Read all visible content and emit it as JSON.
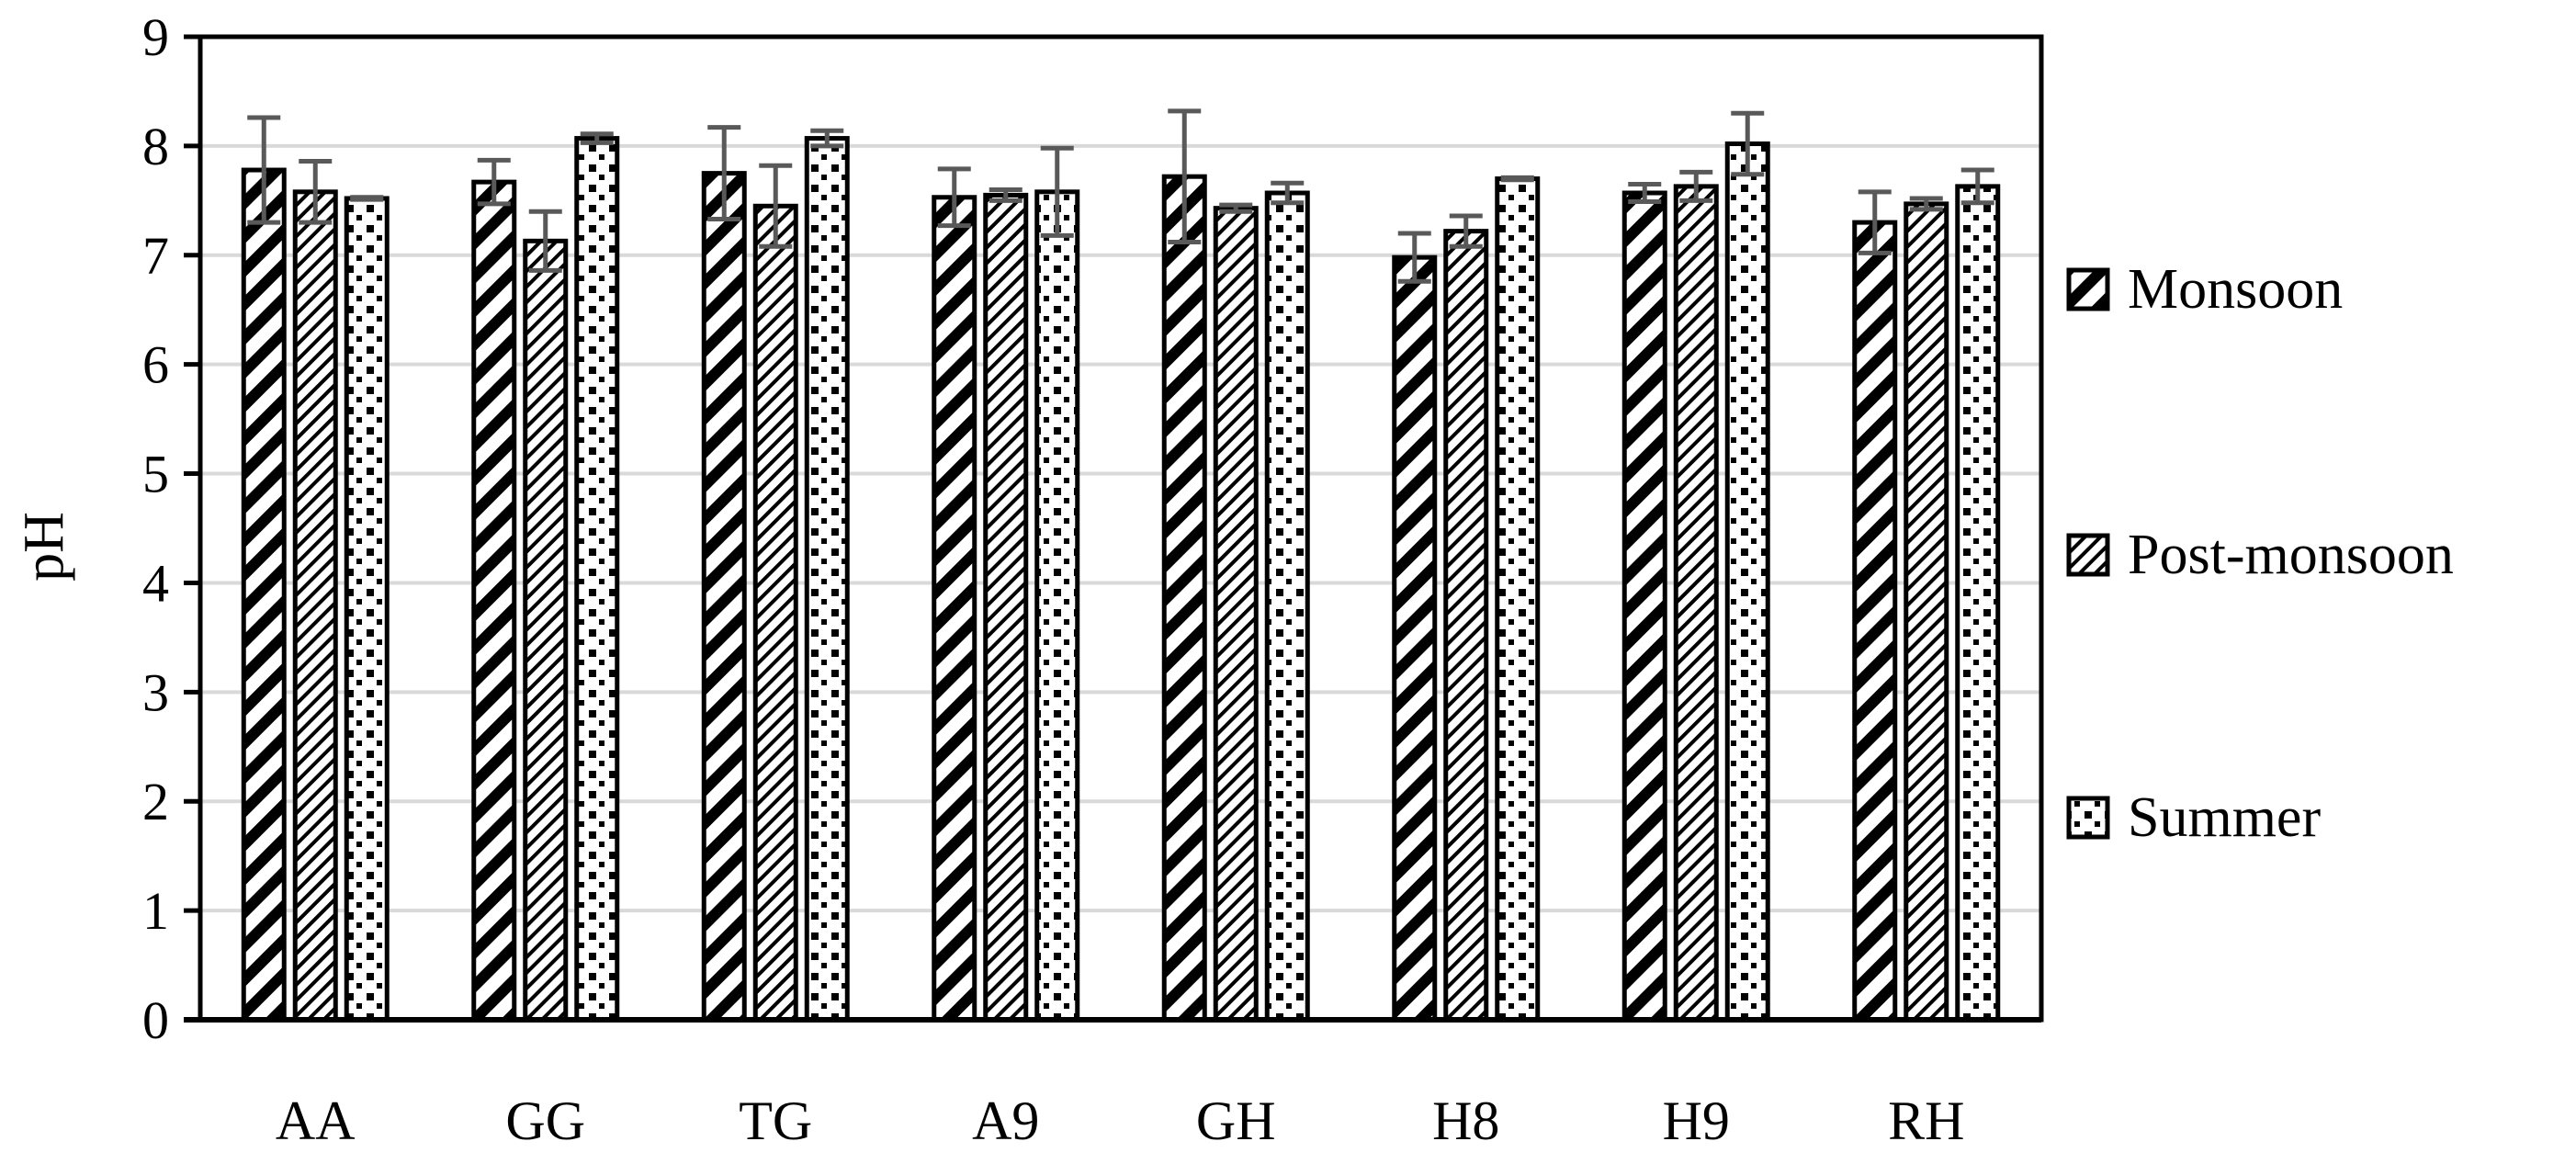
{
  "chart_data": {
    "type": "bar",
    "ylabel": "pH",
    "xlabel": "",
    "ylim": [
      0,
      9
    ],
    "yticks": [
      0,
      1,
      2,
      3,
      4,
      5,
      6,
      7,
      8,
      9
    ],
    "grid": true,
    "legend_position": "right",
    "categories": [
      "AA",
      "GG",
      "TG",
      "A9",
      "GH",
      "H8",
      "H9",
      "RH"
    ],
    "series": [
      {
        "name": "Monsoon",
        "pattern": "wide-diagonal",
        "values": [
          7.78,
          7.67,
          7.75,
          7.53,
          7.72,
          6.98,
          7.57,
          7.3
        ],
        "errors": [
          0.48,
          0.2,
          0.42,
          0.26,
          0.6,
          0.22,
          0.08,
          0.28
        ]
      },
      {
        "name": "Post-monsoon",
        "pattern": "light-diagonal",
        "values": [
          7.58,
          7.13,
          7.45,
          7.55,
          7.43,
          7.22,
          7.63,
          7.47
        ],
        "errors": [
          0.28,
          0.27,
          0.37,
          0.05,
          0.03,
          0.14,
          0.13,
          0.05
        ]
      },
      {
        "name": "Summer",
        "pattern": "dotted-grid",
        "values": [
          7.52,
          8.07,
          8.07,
          7.58,
          7.57,
          7.7,
          8.02,
          7.63
        ],
        "errors": [
          0.01,
          0.04,
          0.07,
          0.4,
          0.09,
          0.01,
          0.28,
          0.15
        ]
      }
    ]
  }
}
